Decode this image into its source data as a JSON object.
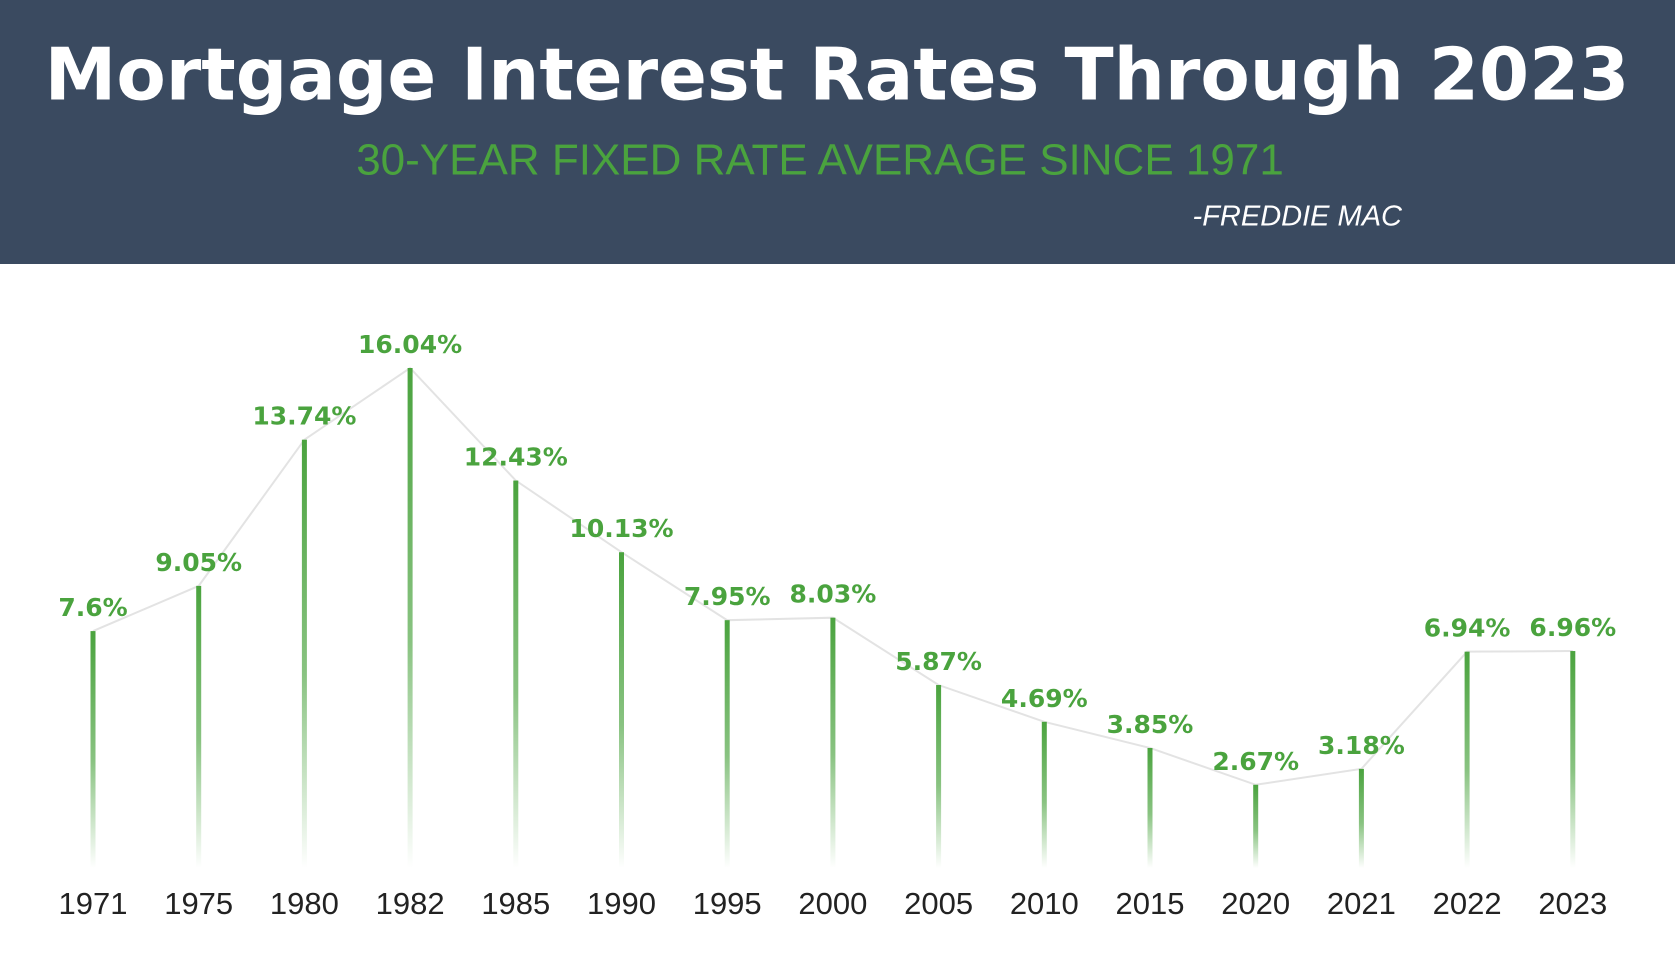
{
  "chart_data": {
    "type": "lollipop",
    "title": "Mortgage Interest Rates Through 2023",
    "subtitle": "30-YEAR FIXED RATE AVERAGE SINCE 1971",
    "source": "-FREDDIE MAC",
    "categories": [
      "1971",
      "1975",
      "1980",
      "1982",
      "1985",
      "1990",
      "1995",
      "2000",
      "2005",
      "2010",
      "2015",
      "2020",
      "2021",
      "2022",
      "2023"
    ],
    "values": [
      7.6,
      9.05,
      13.74,
      16.04,
      12.43,
      10.13,
      7.95,
      8.03,
      5.87,
      4.69,
      3.85,
      2.67,
      3.18,
      6.94,
      6.96
    ],
    "value_labels": [
      "7.6%",
      "9.05%",
      "13.74%",
      "16.04%",
      "12.43%",
      "10.13%",
      "7.95%",
      "8.03%",
      "5.87%",
      "4.69%",
      "3.85%",
      "2.67%",
      "3.18%",
      "6.94%",
      "6.96%"
    ],
    "color": "#4aa33e",
    "line_color": "#e3e3e3"
  }
}
